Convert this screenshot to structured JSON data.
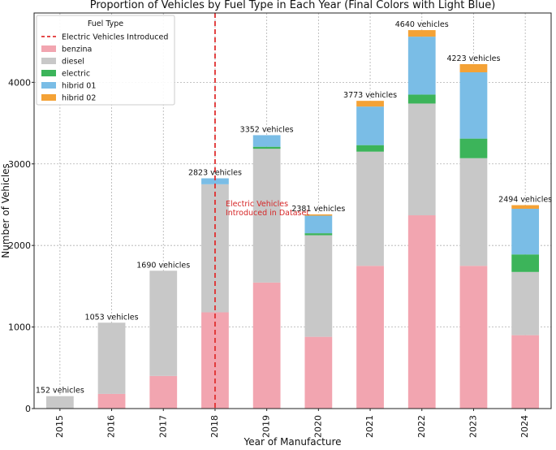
{
  "chart_data": {
    "type": "bar",
    "stacked": true,
    "title": "Proportion of Vehicles by Fuel Type in Each Year (Final Colors with Light Blue)",
    "xlabel": "Year of Manufacture",
    "ylabel": "Number of Vehicles",
    "ylim": [
      0,
      4850
    ],
    "yticks": [
      0,
      1000,
      2000,
      3000,
      4000
    ],
    "categories": [
      "2015",
      "2016",
      "2017",
      "2018",
      "2019",
      "2020",
      "2021",
      "2022",
      "2023",
      "2024"
    ],
    "series": [
      {
        "name": "benzina",
        "color": "#f2a5b0",
        "values": [
          0,
          180,
          400,
          1180,
          1545,
          880,
          1750,
          2370,
          1750,
          900
        ]
      },
      {
        "name": "diesel",
        "color": "#c8c8c8",
        "values": [
          152,
          873,
          1290,
          1570,
          1640,
          1245,
          1400,
          1370,
          1320,
          775
        ]
      },
      {
        "name": "electric",
        "color": "#3cb45a",
        "values": [
          0,
          0,
          0,
          0,
          25,
          25,
          80,
          110,
          240,
          215
        ]
      },
      {
        "name": "hibrid 01",
        "color": "#7abde6",
        "values": [
          0,
          0,
          0,
          73,
          142,
          215,
          473,
          710,
          813,
          560
        ]
      },
      {
        "name": "hibrid 02",
        "color": "#f4a236",
        "values": [
          0,
          0,
          0,
          0,
          0,
          16,
          70,
          80,
          100,
          44
        ]
      }
    ],
    "totals": [
      "152 vehicles",
      "1053 vehicles",
      "1690 vehicles",
      "2823 vehicles",
      "3352 vehicles",
      "2381 vehicles",
      "3773 vehicles",
      "4640 vehicles",
      "4223 vehicles",
      "2494 vehicles"
    ],
    "annotation": {
      "category": "2018",
      "lines": [
        "Electric Vehicles",
        "Introduced in Dataset"
      ],
      "line_color": "#e03030",
      "y_value": 2480
    },
    "legend": {
      "title": "Fuel Type",
      "position": "top-left",
      "entries": [
        {
          "label": "Electric Vehicles Introduced",
          "kind": "dashed-line",
          "color": "#e03030"
        },
        {
          "label": "benzina",
          "kind": "patch",
          "color": "#f2a5b0"
        },
        {
          "label": "diesel",
          "kind": "patch",
          "color": "#c8c8c8"
        },
        {
          "label": "electric",
          "kind": "patch",
          "color": "#3cb45a"
        },
        {
          "label": "hibrid 01",
          "kind": "patch",
          "color": "#7abde6"
        },
        {
          "label": "hibrid 02",
          "kind": "patch",
          "color": "#f4a236"
        }
      ]
    },
    "grid": true
  }
}
